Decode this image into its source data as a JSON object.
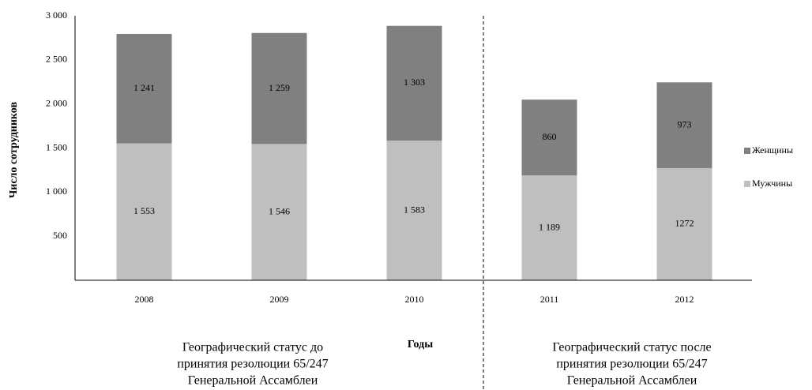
{
  "chart_data": {
    "type": "bar",
    "stacked": true,
    "categories": [
      "2008",
      "2009",
      "2010",
      "2011",
      "2012"
    ],
    "series": [
      {
        "name": "Мужчины",
        "color": "#bfbfbf",
        "values": [
          1553,
          1546,
          1583,
          1189,
          1272
        ],
        "value_labels": [
          "1 553",
          "1 546",
          "1 583",
          "1 189",
          "1272"
        ]
      },
      {
        "name": "Женщины",
        "color": "#808080",
        "values": [
          1241,
          1259,
          1303,
          860,
          973
        ],
        "value_labels": [
          "1 241",
          "1 259",
          "1 303",
          "860",
          "973"
        ]
      }
    ],
    "ylim": [
      0,
      3000
    ],
    "yticks": [
      500,
      {
        "value": 1000,
        "label": "1 000"
      },
      {
        "value": 1500,
        "label": "1 500"
      },
      {
        "value": 2000,
        "label": "2 000"
      },
      {
        "value": 2500,
        "label": "2 500"
      },
      {
        "value": 3000,
        "label": "3 000"
      }
    ],
    "x_label": "Годы",
    "y_label": "Число сотрудников",
    "legend": "right",
    "annotations": [
      [
        "Географический статус до",
        "принятия резолюции 65/247",
        "Генеральной Ассамблеи"
      ],
      [
        "Географический статус после",
        "принятия резолюции 65/247",
        "Генеральной Ассамблеи"
      ]
    ]
  }
}
